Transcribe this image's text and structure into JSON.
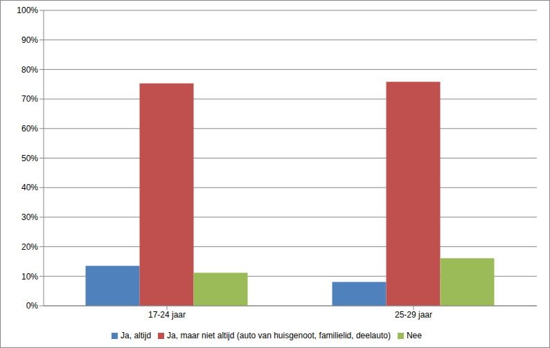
{
  "chart_data": {
    "type": "bar",
    "categories": [
      "17-24 jaar",
      "25-29 jaar"
    ],
    "series": [
      {
        "name": "Ja, altijd",
        "color": "#4f81bd",
        "values": [
          13.5,
          8.1
        ]
      },
      {
        "name": "Ja, maar niet altijd (auto van huisgenoot, familielid, deelauto)",
        "color": "#c0504d",
        "values": [
          75.3,
          75.8
        ]
      },
      {
        "name": "Nee",
        "color": "#9bbb59",
        "values": [
          11.2,
          16.1
        ]
      }
    ],
    "ylim": [
      0,
      100
    ],
    "yticks": [
      {
        "value": 0,
        "label": "0%"
      },
      {
        "value": 10,
        "label": "10%"
      },
      {
        "value": 20,
        "label": "20%"
      },
      {
        "value": 30,
        "label": "30%"
      },
      {
        "value": 40,
        "label": "40%"
      },
      {
        "value": 50,
        "label": "50%"
      },
      {
        "value": 60,
        "label": "60%"
      },
      {
        "value": 70,
        "label": "70%"
      },
      {
        "value": 80,
        "label": "80%"
      },
      {
        "value": 90,
        "label": "90%"
      },
      {
        "value": 100,
        "label": "100%"
      }
    ],
    "grid": true,
    "legend": "bottom"
  }
}
